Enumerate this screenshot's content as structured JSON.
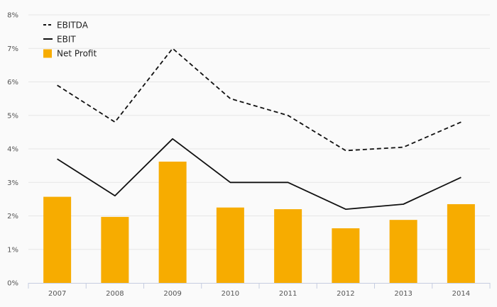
{
  "chart_data": {
    "type": "bar",
    "title": "",
    "xlabel": "",
    "ylabel": "",
    "categories": [
      "2007",
      "2008",
      "2009",
      "2010",
      "2011",
      "2012",
      "2013",
      "2014"
    ],
    "y_ticks": [
      "0%",
      "1%",
      "2%",
      "3%",
      "4%",
      "5%",
      "6%",
      "7%",
      "8%"
    ],
    "ylim": [
      0,
      8
    ],
    "grid": true,
    "legend_position": "top-left",
    "series": [
      {
        "name": "EBITDA",
        "type": "line",
        "style": "dashed",
        "color": "#111111",
        "values": [
          5.9,
          4.8,
          7.0,
          5.5,
          5.0,
          3.95,
          4.05,
          4.8
        ]
      },
      {
        "name": "EBIT",
        "type": "line",
        "style": "solid",
        "color": "#111111",
        "values": [
          3.7,
          2.6,
          4.3,
          3.0,
          3.0,
          2.2,
          2.35,
          3.15
        ]
      },
      {
        "name": "Net Profit",
        "type": "bar",
        "color": "#f7ac00",
        "values": [
          2.57,
          1.97,
          3.62,
          2.25,
          2.2,
          1.63,
          1.88,
          2.35
        ]
      }
    ]
  }
}
